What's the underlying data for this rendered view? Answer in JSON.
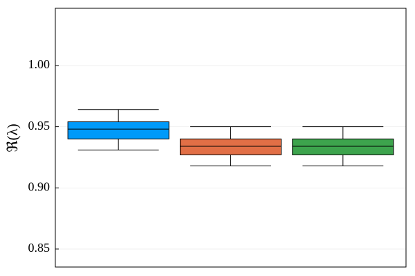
{
  "chart_data": {
    "type": "box",
    "ylabel": "ℜ(λ)",
    "ylim": [
      0.8353,
      1.0468
    ],
    "yticks": [
      {
        "value": 0.85,
        "label": "0.85"
      },
      {
        "value": 0.9,
        "label": "0.90"
      },
      {
        "value": 0.95,
        "label": "0.95"
      },
      {
        "value": 1.0,
        "label": "1.00"
      }
    ],
    "grid": true,
    "boxes": [
      {
        "color": "#009af9",
        "whislo": 0.931,
        "q1": 0.94,
        "med": 0.948,
        "q3": 0.954,
        "whishi": 0.964
      },
      {
        "color": "#e26f46",
        "whislo": 0.918,
        "q1": 0.927,
        "med": 0.934,
        "q3": 0.94,
        "whishi": 0.95
      },
      {
        "color": "#3da44d",
        "whislo": 0.918,
        "q1": 0.927,
        "med": 0.934,
        "q3": 0.94,
        "whishi": 0.95
      }
    ]
  }
}
